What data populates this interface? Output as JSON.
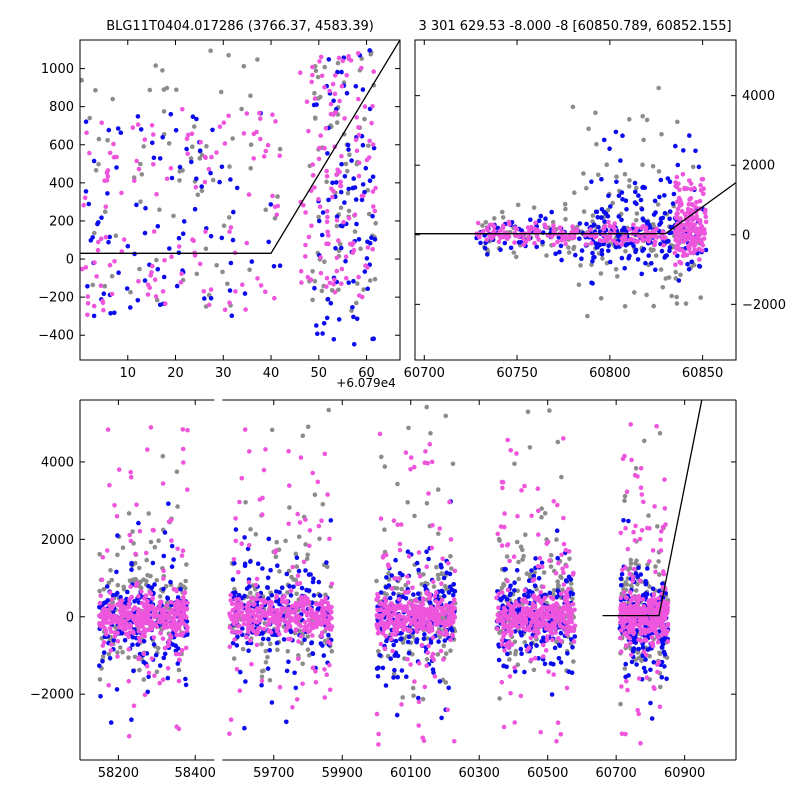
{
  "figure": {
    "width": 800,
    "height": 800
  },
  "colors": {
    "gray": "#8c8c8c",
    "blue": "#0a0af0",
    "magenta": "#ee55dd",
    "fit": "#000000",
    "axis": "#000000"
  },
  "chart_data": [
    {
      "id": "top-left",
      "type": "scatter",
      "title": "BLG11T0404.017286 (3766.37, 4583.39)",
      "x_offset_label": "+6.079e4",
      "xlim": [
        0,
        67
      ],
      "ylim": [
        -530,
        1150
      ],
      "xticks": [
        10,
        20,
        30,
        40,
        50,
        60
      ],
      "xtick_labels": [
        "10",
        "20",
        "30",
        "40",
        "50",
        "60"
      ],
      "yticks": [
        -400,
        -200,
        0,
        200,
        400,
        600,
        800,
        1000
      ],
      "ytick_labels": [
        "−400",
        "−200",
        "0",
        "200",
        "400",
        "600",
        "800",
        "1000"
      ],
      "y_axis_side": "left",
      "fit_line": {
        "x": [
          0,
          40,
          67
        ],
        "y": [
          30,
          30,
          1150
        ]
      },
      "series": [
        {
          "name": "gray",
          "color": "gray",
          "n": 150,
          "seed": 11,
          "clusters": [
            [
              0,
              42,
              -250,
              1100
            ],
            [
              48,
              62,
              -300,
              1100
            ]
          ]
        },
        {
          "name": "blue",
          "color": "blue",
          "n": 180,
          "seed": 12,
          "clusters": [
            [
              0,
              42,
              -300,
              800
            ],
            [
              49,
              62,
              -450,
              1100
            ]
          ]
        },
        {
          "name": "magenta",
          "color": "magenta",
          "n": 250,
          "seed": 13,
          "clusters": [
            [
              0,
              42,
              -300,
              800
            ],
            [
              46,
              62,
              -200,
              1100
            ]
          ]
        }
      ]
    },
    {
      "id": "top-right",
      "type": "scatter",
      "title": "3 301 629.53 -8.000 -8 [60850.789, 60852.155]",
      "xlim": [
        60695,
        60868
      ],
      "ylim": [
        -3600,
        5600
      ],
      "xticks": [
        60700,
        60750,
        60800,
        60850
      ],
      "xtick_labels": [
        "60700",
        "60750",
        "60800",
        "60850"
      ],
      "yticks": [
        -2000,
        0,
        2000,
        4000
      ],
      "ytick_labels": [
        "−2000",
        "0",
        "2000",
        "4000"
      ],
      "y_axis_side": "right",
      "fit_line": {
        "x": [
          60695,
          60830,
          60868
        ],
        "y": [
          30,
          30,
          1500
        ]
      },
      "series": [
        {
          "name": "gray",
          "color": "gray",
          "n": 180,
          "seed": 21,
          "clusters": [
            [
              60728,
              60850,
              -900,
              900
            ],
            [
              60780,
              60850,
              -2500,
              4500
            ]
          ]
        },
        {
          "name": "blue",
          "color": "blue",
          "n": 300,
          "seed": 22,
          "clusters": [
            [
              60728,
              60850,
              -700,
              700
            ],
            [
              60790,
              60852,
              -1500,
              3000
            ]
          ]
        },
        {
          "name": "magenta",
          "color": "magenta",
          "n": 380,
          "seed": 23,
          "clusters": [
            [
              60728,
              60830,
              -300,
              400
            ],
            [
              60835,
              60852,
              -500,
              1800
            ]
          ]
        }
      ]
    },
    {
      "id": "bottom",
      "type": "scatter",
      "title": "",
      "xlim": [
        58100,
        61050
      ],
      "ylim": [
        -3700,
        5600
      ],
      "broken_axis": {
        "segments": [
          [
            58100,
            58450
          ],
          [
            59550,
            61050
          ]
        ],
        "split_fraction": 0.211
      },
      "xticks": [
        58200,
        58400,
        59700,
        59900,
        60100,
        60300,
        60500,
        60700,
        60900
      ],
      "xtick_labels": [
        "58200",
        "58400",
        "59700",
        "59900",
        "60100",
        "60300",
        "60500",
        "60700",
        "60900"
      ],
      "yticks": [
        -2000,
        0,
        2000,
        4000
      ],
      "ytick_labels": [
        "−2000",
        "0",
        "2000",
        "4000"
      ],
      "y_axis_side": "left",
      "fit_line": {
        "x": [
          60660,
          60825,
          60950
        ],
        "y": [
          30,
          30,
          5600
        ]
      },
      "seasons": [
        [
          58150,
          58380
        ],
        [
          59570,
          59870
        ],
        [
          60000,
          60230
        ],
        [
          60350,
          60580
        ],
        [
          60710,
          60852
        ]
      ],
      "series": [
        {
          "name": "gray",
          "color": "gray",
          "n_per_season": 160,
          "seed": 31,
          "core": [
            -700,
            900
          ],
          "spread": [
            -2200,
            5500
          ]
        },
        {
          "name": "blue",
          "color": "blue",
          "n_per_season": 200,
          "seed": 32,
          "core": [
            -600,
            600
          ],
          "spread": [
            -2900,
            3000
          ]
        },
        {
          "name": "magenta",
          "color": "magenta",
          "n_per_season": 380,
          "seed": 33,
          "core": [
            -300,
            300
          ],
          "spread": [
            -3300,
            5000
          ]
        }
      ]
    }
  ]
}
